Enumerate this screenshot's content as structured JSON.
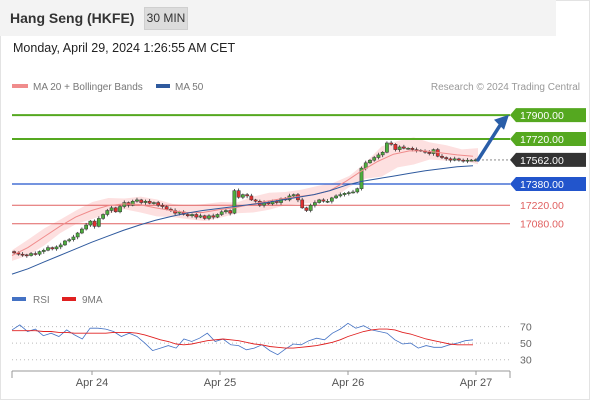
{
  "header": {
    "instrument": "Hang Seng (HKFE)",
    "timeframe": "30 MIN",
    "datetime": "Monday, April 29, 2024 1:26:55 AM CET"
  },
  "legend": {
    "ma20": "MA 20 + Bollinger Bands",
    "ma50": "MA 50",
    "credit": "Research © 2024 Trading Central",
    "rsi": "RSI",
    "rsi_ma": "9MA"
  },
  "colors": {
    "ma20": "#f08c8c",
    "bollinger_fill": "#fde0e0",
    "ma50": "#2f5a9e",
    "resistance": "#55a820",
    "pivot": "#2255cc",
    "support": "#e06060",
    "current": "#333333",
    "arrow": "#2a5ea8",
    "candle_up": "#4cae3c",
    "candle_down": "#e03030",
    "rsi": "#4472c4",
    "rsi_ma": "#e02020"
  },
  "chart_data": [
    {
      "type": "candlestick",
      "title": "Hang Seng (HKFE)",
      "timeframe": "30 MIN",
      "x_ticks": [
        "Apr 24",
        "Apr 25",
        "Apr 26",
        "Apr 27"
      ],
      "ylim": [
        16640,
        18090
      ],
      "levels": [
        {
          "value": 17900.0,
          "label": "17900.00",
          "kind": "resistance"
        },
        {
          "value": 17720.0,
          "label": "17720.00",
          "kind": "resistance"
        },
        {
          "value": 17562.0,
          "label": "17562.00",
          "kind": "current"
        },
        {
          "value": 17380.0,
          "label": "17380.00",
          "kind": "pivot"
        },
        {
          "value": 17220.0,
          "label": "17220.00",
          "kind": "support"
        },
        {
          "value": 17080.0,
          "label": "17080.00",
          "kind": "support"
        }
      ],
      "close_series": [
        16860,
        16850,
        16845,
        16840,
        16855,
        16850,
        16870,
        16880,
        16900,
        16890,
        16905,
        16920,
        16950,
        16960,
        16980,
        17010,
        17040,
        17070,
        17100,
        17060,
        17120,
        17150,
        17180,
        17200,
        17170,
        17210,
        17240,
        17220,
        17250,
        17260,
        17240,
        17250,
        17235,
        17240,
        17220,
        17210,
        17190,
        17180,
        17160,
        17170,
        17150,
        17140,
        17150,
        17130,
        17140,
        17120,
        17140,
        17130,
        17150,
        17170,
        17180,
        17160,
        17330,
        17280,
        17300,
        17290,
        17260,
        17250,
        17220,
        17240,
        17230,
        17250,
        17240,
        17270,
        17260,
        17290,
        17300,
        17260,
        17200,
        17180,
        17220,
        17240,
        17260,
        17250,
        17250,
        17275,
        17290,
        17300,
        17310,
        17315,
        17320,
        17345,
        17500,
        17540,
        17560,
        17580,
        17600,
        17620,
        17690,
        17680,
        17640,
        17660,
        17650,
        17650,
        17640,
        17635,
        17630,
        17620,
        17610,
        17640,
        17590,
        17580,
        17570,
        17560,
        17570,
        17560,
        17555,
        17560,
        17560,
        17562
      ],
      "ma20": [
        16840,
        16900,
        16980,
        17060,
        17130,
        17180,
        17215,
        17230,
        17225,
        17200,
        17180,
        17165,
        17165,
        17185,
        17200,
        17225,
        17250,
        17270,
        17285,
        17300,
        17330,
        17400,
        17480,
        17550,
        17605,
        17630,
        17630,
        17615,
        17600,
        17590
      ],
      "ma50": [
        16700,
        16740,
        16790,
        16840,
        16890,
        16940,
        16985,
        17030,
        17070,
        17105,
        17135,
        17160,
        17180,
        17195,
        17210,
        17225,
        17240,
        17260,
        17280,
        17300,
        17330,
        17370,
        17400,
        17420,
        17440,
        17460,
        17480,
        17495,
        17510,
        17518
      ]
    },
    {
      "type": "line",
      "name": "RSI",
      "ylim": [
        20,
        90
      ],
      "y_ticks": [
        70,
        50,
        30
      ],
      "series": [
        {
          "name": "RSI",
          "values": [
            66,
            72,
            64,
            67,
            59,
            62,
            58,
            66,
            60,
            55,
            68,
            68,
            67,
            64,
            58,
            62,
            58,
            50,
            41,
            44,
            47,
            44,
            55,
            52,
            56,
            62,
            52,
            55,
            48,
            47,
            42,
            44,
            48,
            41,
            36,
            43,
            49,
            48,
            53,
            56,
            54,
            62,
            67,
            74,
            68,
            71,
            66,
            64,
            62,
            54,
            49,
            50,
            44,
            47,
            45,
            45,
            48,
            50,
            53,
            54
          ]
        },
        {
          "name": "9MA",
          "values": [
            65,
            65,
            65,
            65,
            64,
            64,
            63,
            63,
            62,
            62,
            62,
            62,
            62,
            63,
            63,
            63,
            62,
            60,
            57,
            54,
            52,
            49,
            48,
            49,
            51,
            53,
            54,
            55,
            54,
            53,
            51,
            49,
            48,
            46,
            45,
            44,
            44,
            45,
            46,
            47,
            49,
            51,
            54,
            58,
            61,
            64,
            66,
            67,
            67,
            66,
            63,
            61,
            58,
            55,
            53,
            51,
            49,
            48,
            48,
            48
          ]
        }
      ]
    }
  ]
}
